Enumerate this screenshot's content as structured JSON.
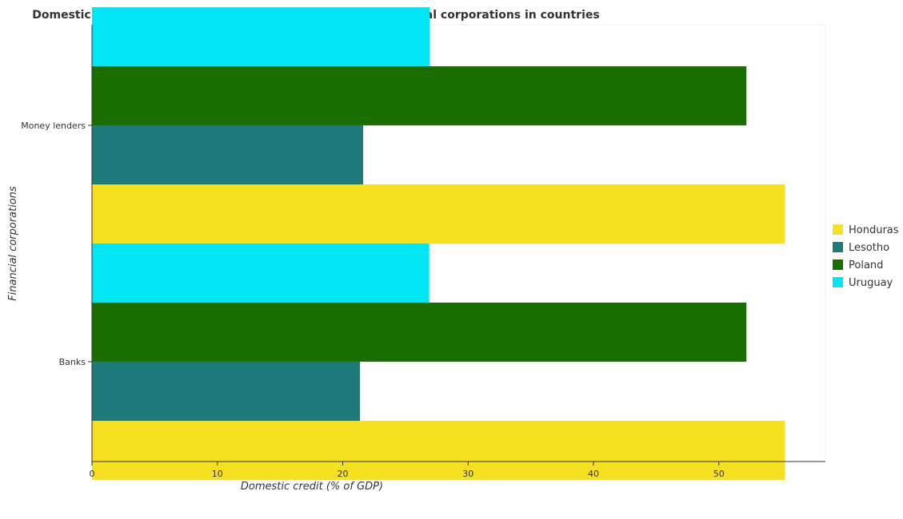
{
  "chart_data": {
    "type": "bar",
    "orientation": "horizontal",
    "title": "Domestic credit provided to private sector by different financial corporations in countries",
    "xlabel": "Domestic credit (% of GDP)",
    "ylabel": "Financial corporations",
    "categories": [
      "Banks",
      "Money lenders"
    ],
    "series": [
      {
        "name": "Honduras",
        "color": "#f5e11f",
        "values": [
          55.28,
          55.28
        ]
      },
      {
        "name": "Lesotho",
        "color": "#1f7a7a",
        "values": [
          21.38,
          21.63
        ]
      },
      {
        "name": "Poland",
        "color": "#1a6e00",
        "values": [
          52.2,
          52.2
        ]
      },
      {
        "name": "Uruguay",
        "color": "#00e6f5",
        "values": [
          26.9,
          26.93
        ]
      }
    ],
    "xlim": [
      0,
      58.5
    ],
    "xticks": [
      0,
      10,
      20,
      30,
      40,
      50
    ],
    "grid": false,
    "legend_position": "right"
  }
}
